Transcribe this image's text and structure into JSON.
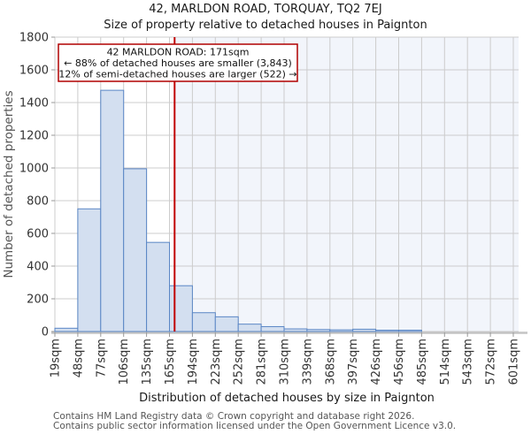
{
  "page": {
    "footer_line1": "Contains HM Land Registry data © Crown copyright and database right 2026.",
    "footer_line2": "Contains public sector information licensed under the Open Government Licence v3.0."
  },
  "chart_data": {
    "type": "bar",
    "title": "42, MARLDON ROAD, TORQUAY, TQ2 7EJ",
    "subtitle": "Size of property relative to detached houses in Paignton",
    "xlabel": "Distribution of detached houses by size in Paignton",
    "ylabel": "Number of detached properties",
    "ylim": [
      0,
      1800
    ],
    "ytick_step": 200,
    "grid": true,
    "legend_position": "none",
    "bin_edge_labels": [
      "19sqm",
      "48sqm",
      "77sqm",
      "106sqm",
      "135sqm",
      "165sqm",
      "194sqm",
      "223sqm",
      "252sqm",
      "281sqm",
      "310sqm",
      "339sqm",
      "368sqm",
      "397sqm",
      "426sqm",
      "456sqm",
      "485sqm",
      "514sqm",
      "543sqm",
      "572sqm",
      "601sqm"
    ],
    "bin_edges_sqm": [
      19,
      48,
      77,
      106,
      135,
      165,
      194,
      223,
      252,
      281,
      310,
      339,
      368,
      397,
      426,
      456,
      485,
      514,
      543,
      572,
      601
    ],
    "values": [
      20,
      750,
      1475,
      995,
      545,
      280,
      115,
      90,
      45,
      30,
      16,
      12,
      10,
      14,
      8,
      8,
      0,
      0,
      0,
      0
    ],
    "marker_sqm": 171,
    "annotation": {
      "line1": "42 MARLDON ROAD: 171sqm",
      "line2": "← 88% of detached houses are smaller (3,843)",
      "line3": "12% of semi-detached houses are larger (522) →"
    },
    "colors": {
      "bar_fill": "#d3dff0",
      "bar_stroke": "#5a86c5",
      "marker_line": "#c00000",
      "annotation_border": "#b00000",
      "annotation_bg": "#ffffff",
      "shade_right_of_marker": "#f2f5fb",
      "grid": "#cccccc",
      "axis_line": "#c4c4c4",
      "tick_text": "#333333",
      "muted_text": "#555555"
    }
  }
}
